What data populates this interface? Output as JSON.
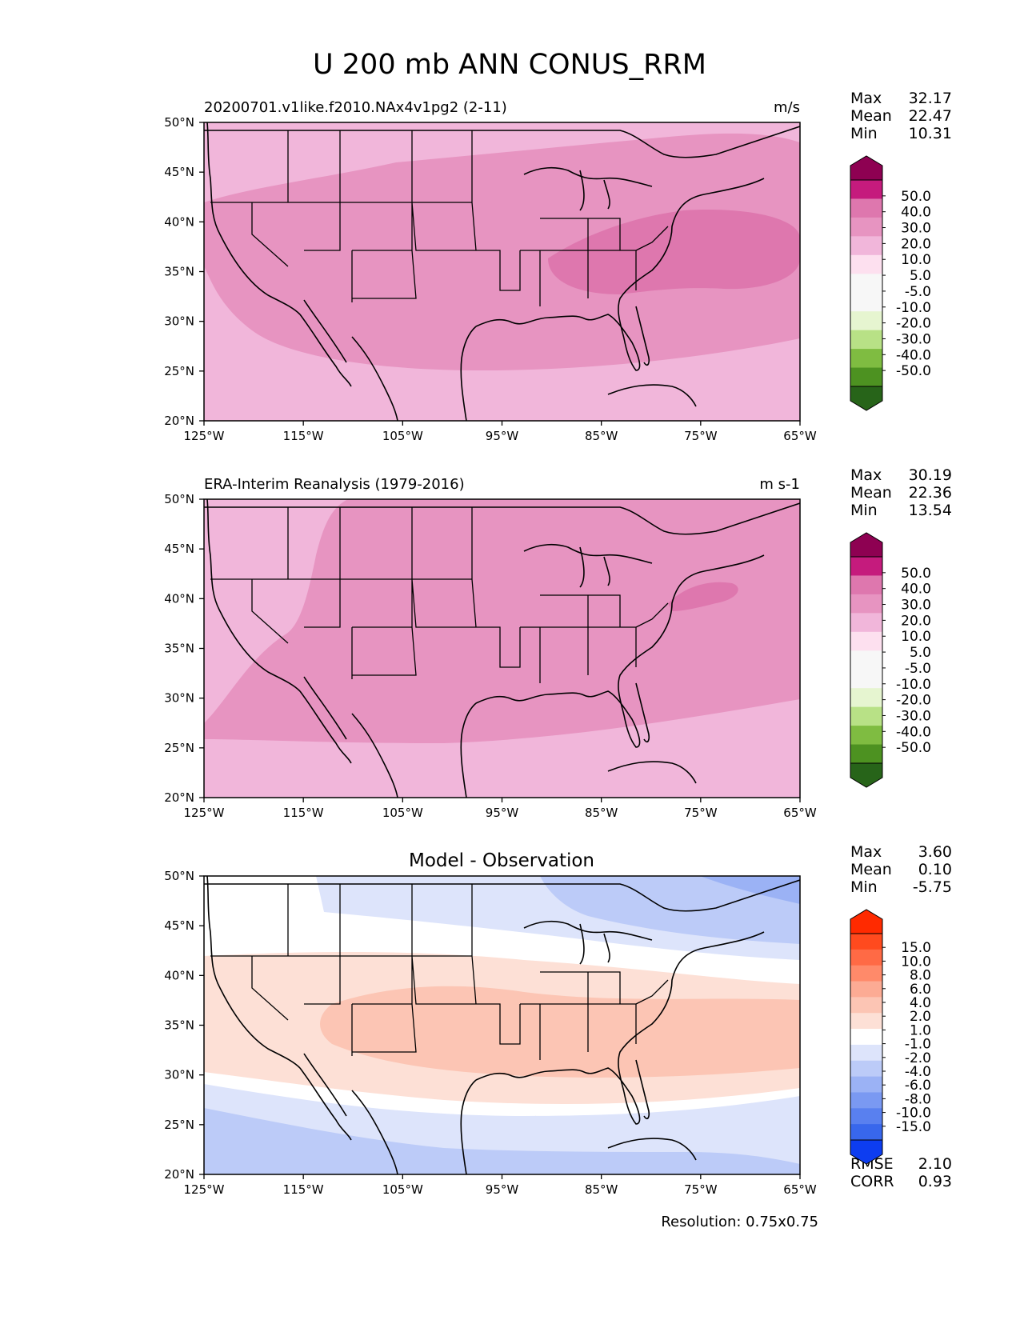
{
  "figure": {
    "title": "U 200 mb ANN CONUS_RRM",
    "resolution": "Resolution: 0.75x0.75"
  },
  "chart_data": [
    {
      "type": "heatmap",
      "name": "test",
      "title_left": "20200701.v1like.f2010.NAx4v1pg2 (2-11)",
      "units": "m/s",
      "xticks": [
        "125°W",
        "115°W",
        "105°W",
        "95°W",
        "85°W",
        "75°W",
        "65°W"
      ],
      "yticks": [
        "50°N",
        "45°N",
        "40°N",
        "35°N",
        "30°N",
        "25°N",
        "20°N"
      ],
      "xlim": [
        -125,
        -65
      ],
      "ylim": [
        20,
        50
      ],
      "stats": {
        "labels": [
          "Max",
          "Mean",
          "Min"
        ],
        "values": [
          "32.17",
          "22.47",
          "10.31"
        ]
      },
      "colorbar": {
        "levels": [
          "50.0",
          "40.0",
          "30.0",
          "20.0",
          "10.0",
          "5.0",
          "-5.0",
          "-10.0",
          "-20.0",
          "-30.0",
          "-40.0",
          "-50.0"
        ],
        "colors": [
          "#8e0152",
          "#c51b7d",
          "#de77ae",
          "#e794c1",
          "#f1b6da",
          "#fde0ef",
          "#f7f7f7",
          "#f7f7f7",
          "#e6f5d0",
          "#b8e186",
          "#7fbc41",
          "#4d9221",
          "#276419"
        ]
      }
    },
    {
      "type": "heatmap",
      "name": "reference",
      "title_left": "ERA-Interim Reanalysis (1979-2016)",
      "units": "m s-1",
      "xticks": [
        "125°W",
        "115°W",
        "105°W",
        "95°W",
        "85°W",
        "75°W",
        "65°W"
      ],
      "yticks": [
        "50°N",
        "45°N",
        "40°N",
        "35°N",
        "30°N",
        "25°N",
        "20°N"
      ],
      "xlim": [
        -125,
        -65
      ],
      "ylim": [
        20,
        50
      ],
      "stats": {
        "labels": [
          "Max",
          "Mean",
          "Min"
        ],
        "values": [
          "30.19",
          "22.36",
          "13.54"
        ]
      },
      "colorbar": {
        "levels": [
          "50.0",
          "40.0",
          "30.0",
          "20.0",
          "10.0",
          "5.0",
          "-5.0",
          "-10.0",
          "-20.0",
          "-30.0",
          "-40.0",
          "-50.0"
        ],
        "colors": [
          "#8e0152",
          "#c51b7d",
          "#de77ae",
          "#e794c1",
          "#f1b6da",
          "#fde0ef",
          "#f7f7f7",
          "#f7f7f7",
          "#e6f5d0",
          "#b8e186",
          "#7fbc41",
          "#4d9221",
          "#276419"
        ]
      }
    },
    {
      "type": "heatmap",
      "name": "diff",
      "title_center": "Model - Observation",
      "xticks": [
        "125°W",
        "115°W",
        "105°W",
        "95°W",
        "85°W",
        "75°W",
        "65°W"
      ],
      "yticks": [
        "50°N",
        "45°N",
        "40°N",
        "35°N",
        "30°N",
        "25°N",
        "20°N"
      ],
      "xlim": [
        -125,
        -65
      ],
      "ylim": [
        20,
        50
      ],
      "stats": {
        "labels": [
          "Max",
          "Mean",
          "Min"
        ],
        "values": [
          "3.60",
          "0.10",
          "-5.75"
        ]
      },
      "extra_stats": {
        "labels": [
          "RMSE",
          "CORR"
        ],
        "values": [
          "2.10",
          "0.93"
        ]
      },
      "colorbar": {
        "levels": [
          "15.0",
          "10.0",
          "8.0",
          "6.0",
          "4.0",
          "2.0",
          "1.0",
          "-1.0",
          "-2.0",
          "-4.0",
          "-6.0",
          "-8.0",
          "-10.0",
          "-15.0"
        ],
        "colors": [
          "#ff2a00",
          "#ff4a1e",
          "#ff6a45",
          "#ff8a6a",
          "#fcab94",
          "#fcc5b4",
          "#fde0d6",
          "#ffffff",
          "#dde4fb",
          "#bccbf8",
          "#9bb2f5",
          "#7a99f2",
          "#5980ef",
          "#3867ec",
          "#0d3df0"
        ]
      }
    }
  ]
}
